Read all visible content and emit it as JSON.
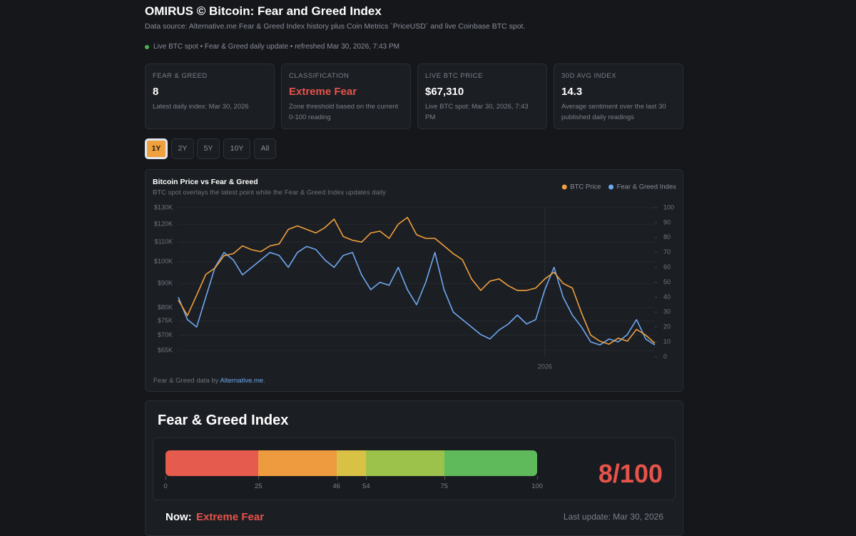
{
  "header": {
    "title": "OMIRUS © Bitcoin: Fear and Greed Index",
    "subtitle": "Data source: Alternative.me Fear & Greed Index history plus Coin Metrics `PriceUSD` and live Coinbase BTC spot.",
    "status": "Live BTC spot • Fear & Greed daily update • refreshed Mar 30, 2026, 7:43 PM"
  },
  "cards": [
    {
      "label": "FEAR & GREED",
      "value": 8,
      "note": "Latest daily index: Mar 30, 2026"
    },
    {
      "label": "CLASSIFICATION",
      "value": "Extreme Fear",
      "note": "Zone threshold based on the current 0-100 reading"
    },
    {
      "label": "LIVE BTC PRICE",
      "value": "$67,310",
      "note": "Live BTC spot: Mar 30, 2026, 7:43 PM"
    },
    {
      "label": "30D AVG INDEX",
      "value": 14.3,
      "note": "Average sentiment over the last 30 published daily readings"
    }
  ],
  "ranges": [
    "1Y",
    "2Y",
    "5Y",
    "10Y",
    "All"
  ],
  "chart_data": {
    "type": "line",
    "title": "Bitcoin Price vs Fear & Greed",
    "subtitle": "BTC spot overlays the latest point while the Fear & Greed Index updates daily",
    "categories": [
      null,
      null,
      null,
      null,
      null,
      null,
      null,
      null,
      null,
      null,
      null,
      null,
      null,
      null,
      null,
      null,
      null,
      null,
      null,
      null,
      null,
      null,
      null,
      null,
      null,
      null,
      null,
      null,
      null,
      null,
      null,
      null,
      null,
      null,
      null,
      null,
      null,
      null,
      null,
      null,
      "2026",
      null,
      null,
      null,
      null,
      null,
      null,
      null,
      null,
      null,
      null,
      null,
      null
    ],
    "series": [
      {
        "name": "BTC Price",
        "color": "#f0a03c",
        "axis": "y",
        "values": [
          83000,
          77000,
          85000,
          94000,
          97000,
          103000,
          104000,
          108000,
          106000,
          105000,
          108000,
          109000,
          117000,
          119000,
          117000,
          115000,
          118000,
          123000,
          113000,
          111000,
          110000,
          115000,
          116000,
          112000,
          120000,
          124000,
          114000,
          112000,
          112000,
          108000,
          104000,
          101000,
          92000,
          87000,
          91000,
          92000,
          89000,
          87000,
          87000,
          88000,
          92000,
          95000,
          90000,
          88000,
          78000,
          70000,
          68000,
          67000,
          69000,
          68000,
          72000,
          70000,
          67310
        ]
      },
      {
        "name": "Fear & Greed Index",
        "color": "#6ea8f0",
        "axis": "y2",
        "values": [
          40,
          25,
          20,
          40,
          60,
          70,
          65,
          55,
          60,
          65,
          70,
          68,
          60,
          70,
          74,
          72,
          65,
          60,
          68,
          70,
          55,
          45,
          50,
          48,
          60,
          45,
          35,
          50,
          70,
          45,
          30,
          25,
          20,
          15,
          12,
          18,
          22,
          28,
          22,
          25,
          45,
          60,
          40,
          28,
          20,
          10,
          8,
          12,
          10,
          15,
          25,
          12,
          8
        ]
      }
    ],
    "ylim": [
      63000,
      130000
    ],
    "yscale": "log",
    "yticks": [
      {
        "value": 130000,
        "label": "$130K"
      },
      {
        "value": 120000,
        "label": "$120K"
      },
      {
        "value": 110000,
        "label": "$110K"
      },
      {
        "value": 100000,
        "label": "$100K"
      },
      {
        "value": 90000,
        "label": "$90K"
      },
      {
        "value": 80000,
        "label": "$80K"
      },
      {
        "value": 75000,
        "label": "$75K"
      },
      {
        "value": 70000,
        "label": "$70K"
      },
      {
        "value": 65000,
        "label": "$65K"
      }
    ],
    "y2lim": [
      0,
      100
    ],
    "y2ticks": [
      0,
      10,
      20,
      30,
      40,
      50,
      60,
      70,
      80,
      90,
      100
    ],
    "legend": "top-right"
  },
  "credit": {
    "text": "Fear & Greed data by ",
    "link": "Alternative.me",
    "end": "."
  },
  "gauge": {
    "title": "Fear & Greed Index",
    "ticks": [
      0,
      25,
      46,
      54,
      75,
      100
    ],
    "colors": [
      "#e55b4d",
      "#ee9a3e",
      "#d9c146",
      "#9cc24b",
      "#5fba5c"
    ],
    "reading": "8/100",
    "now_label": "Now:",
    "now_value": "Extreme Fear",
    "updated": "Last update: Mar 30, 2026"
  }
}
